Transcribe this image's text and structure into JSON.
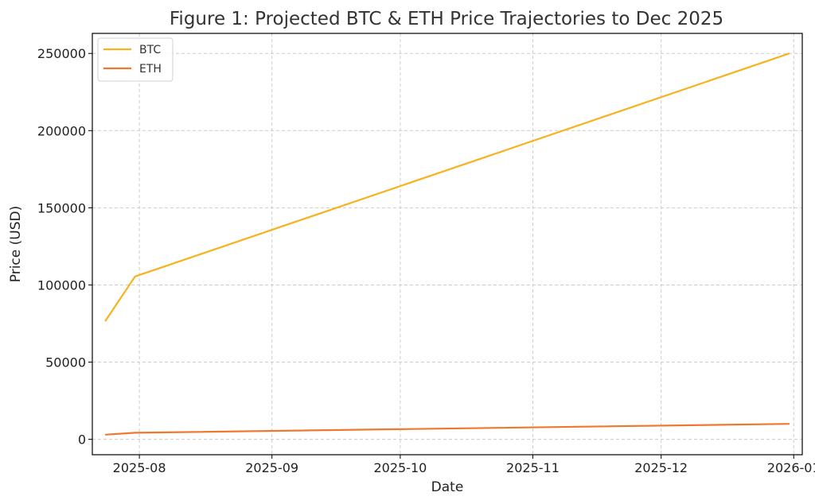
{
  "chart_data": {
    "type": "line",
    "title": "Figure 1: Projected BTC & ETH Price Trajectories to Dec 2025",
    "xlabel": "Date",
    "ylabel": "Price (USD)",
    "x_ticks": [
      "2025-08",
      "2025-09",
      "2025-10",
      "2025-11",
      "2025-12",
      "2026-01"
    ],
    "y_ticks": [
      0,
      50000,
      100000,
      150000,
      200000,
      250000
    ],
    "xlim": [
      "2025-07-21",
      "2026-01-03"
    ],
    "ylim": [
      -10000,
      263000
    ],
    "grid": true,
    "legend_position": "top-left",
    "series": [
      {
        "name": "BTC",
        "color": "#f7b21e",
        "points": [
          {
            "x": "2025-07-24",
            "y": 76500
          },
          {
            "x": "2025-07-31",
            "y": 105500
          },
          {
            "x": "2025-12-31",
            "y": 250000
          }
        ]
      },
      {
        "name": "ETH",
        "color": "#f0782e",
        "points": [
          {
            "x": "2025-07-24",
            "y": 3000
          },
          {
            "x": "2025-07-31",
            "y": 4200
          },
          {
            "x": "2025-12-31",
            "y": 10000
          }
        ]
      }
    ]
  }
}
